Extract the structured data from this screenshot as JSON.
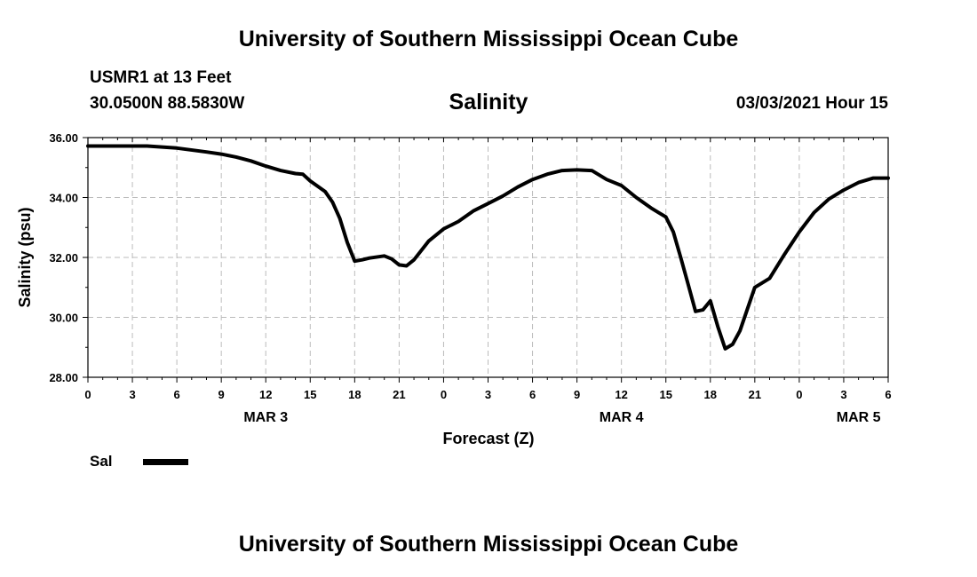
{
  "header": {
    "title": "University of Southern Mississippi Ocean Cube",
    "station": "USMR1 at 13 Feet",
    "location": "30.0500N 88.5830W",
    "variable": "Salinity",
    "run": "03/03/2021 Hour 15"
  },
  "footer": {
    "title": "University of Southern Mississippi Ocean Cube"
  },
  "legend": {
    "label": "Sal",
    "color": "#000000"
  },
  "chart_data": {
    "type": "line",
    "title": "Salinity",
    "xlabel": "Forecast (Z)",
    "ylabel": "Salinity (psu)",
    "ylim": [
      28,
      36
    ],
    "xlim": [
      0,
      54
    ],
    "x_units": "hours from 03/03 00Z",
    "x_tick_labels": [
      "0",
      "3",
      "6",
      "9",
      "12",
      "15",
      "18",
      "21",
      "0",
      "3",
      "6",
      "9",
      "12",
      "15",
      "18",
      "21",
      "0",
      "3",
      "6"
    ],
    "y_tick_labels": [
      "28.00",
      "30.00",
      "32.00",
      "34.00",
      "36.00"
    ],
    "date_labels": [
      {
        "label": "MAR 3",
        "at_hour": 12
      },
      {
        "label": "MAR 4",
        "at_hour": 36
      },
      {
        "label": "MAR 5",
        "at_hour": 52
      }
    ],
    "grid": true,
    "grid_style": "dashed",
    "legend_position": "bottom-left",
    "series": [
      {
        "name": "Sal",
        "color": "#000000",
        "points": [
          [
            0,
            35.72
          ],
          [
            2,
            35.72
          ],
          [
            4,
            35.72
          ],
          [
            6,
            35.65
          ],
          [
            8,
            35.52
          ],
          [
            9,
            35.45
          ],
          [
            10,
            35.35
          ],
          [
            11,
            35.22
          ],
          [
            12,
            35.05
          ],
          [
            13,
            34.9
          ],
          [
            14,
            34.8
          ],
          [
            14.5,
            34.78
          ],
          [
            15,
            34.55
          ],
          [
            16,
            34.2
          ],
          [
            16.5,
            33.85
          ],
          [
            17,
            33.3
          ],
          [
            17.5,
            32.5
          ],
          [
            18,
            31.88
          ],
          [
            18.5,
            31.92
          ],
          [
            19,
            31.98
          ],
          [
            20,
            32.05
          ],
          [
            20.5,
            31.95
          ],
          [
            21,
            31.75
          ],
          [
            21.5,
            31.72
          ],
          [
            22,
            31.92
          ],
          [
            23,
            32.55
          ],
          [
            24,
            32.95
          ],
          [
            25,
            33.2
          ],
          [
            26,
            33.55
          ],
          [
            27,
            33.8
          ],
          [
            28,
            34.05
          ],
          [
            29,
            34.35
          ],
          [
            30,
            34.6
          ],
          [
            31,
            34.78
          ],
          [
            32,
            34.9
          ],
          [
            33,
            34.92
          ],
          [
            34,
            34.9
          ],
          [
            35,
            34.6
          ],
          [
            36,
            34.4
          ],
          [
            37,
            34.0
          ],
          [
            38,
            33.65
          ],
          [
            38.5,
            33.5
          ],
          [
            39,
            33.35
          ],
          [
            39.5,
            32.85
          ],
          [
            40,
            32.0
          ],
          [
            40.5,
            31.1
          ],
          [
            41,
            30.2
          ],
          [
            41.5,
            30.25
          ],
          [
            42,
            30.55
          ],
          [
            42.5,
            29.7
          ],
          [
            43,
            28.95
          ],
          [
            43.5,
            29.1
          ],
          [
            44,
            29.55
          ],
          [
            45,
            31.0
          ],
          [
            46,
            31.3
          ],
          [
            47,
            32.1
          ],
          [
            48,
            32.85
          ],
          [
            49,
            33.5
          ],
          [
            50,
            33.95
          ],
          [
            51,
            34.25
          ],
          [
            52,
            34.5
          ],
          [
            53,
            34.65
          ],
          [
            54,
            34.65
          ]
        ]
      }
    ]
  }
}
